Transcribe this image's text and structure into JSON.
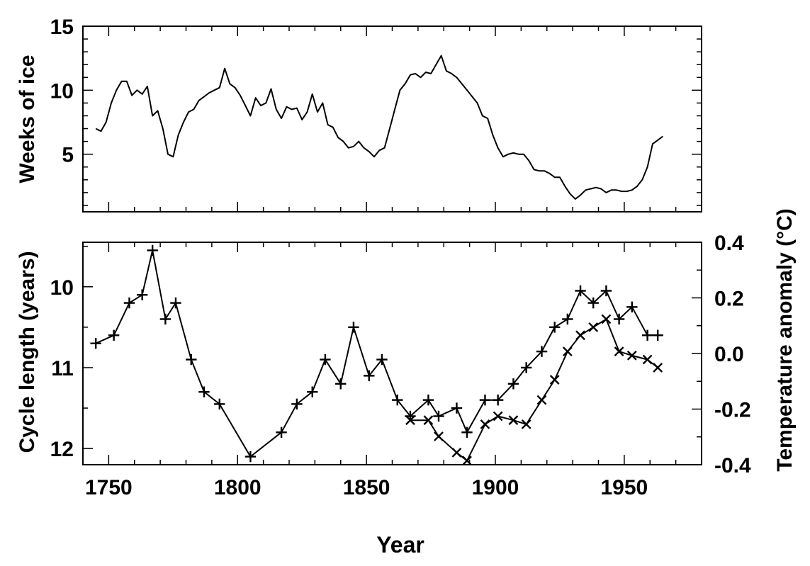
{
  "chart_data": [
    {
      "type": "line",
      "ylabel": "Weeks of ice",
      "xlim": [
        1740,
        1980
      ],
      "ylim": [
        0.5,
        15
      ],
      "yticks": [
        5,
        10,
        15
      ],
      "grid": false,
      "series": [
        {
          "x": [
            1745,
            1747,
            1749,
            1751,
            1753,
            1755,
            1757,
            1759,
            1761,
            1763,
            1765,
            1767,
            1769,
            1771,
            1773,
            1775,
            1777,
            1779,
            1781,
            1783,
            1785,
            1787,
            1789,
            1791,
            1793,
            1795,
            1797,
            1799,
            1801,
            1803,
            1805,
            1807,
            1809,
            1811,
            1813,
            1815,
            1817,
            1819,
            1821,
            1823,
            1825,
            1827,
            1829,
            1831,
            1833,
            1835,
            1837,
            1839,
            1841,
            1843,
            1845,
            1847,
            1849,
            1851,
            1853,
            1855,
            1857,
            1859,
            1861,
            1863,
            1865,
            1867,
            1869,
            1871,
            1873,
            1875,
            1877,
            1879,
            1881,
            1883,
            1885,
            1887,
            1889,
            1891,
            1893,
            1895,
            1897,
            1899,
            1901,
            1903,
            1905,
            1907,
            1909,
            1911,
            1913,
            1915,
            1917,
            1919,
            1921,
            1923,
            1925,
            1927,
            1929,
            1931,
            1933,
            1935,
            1937,
            1939,
            1941,
            1943,
            1945,
            1947,
            1949,
            1951,
            1953,
            1955,
            1957,
            1959,
            1961,
            1963,
            1965
          ],
          "y": [
            7.0,
            6.8,
            7.5,
            9.0,
            10.0,
            10.7,
            10.7,
            9.6,
            10.0,
            9.7,
            10.3,
            8.0,
            8.4,
            7.0,
            5.0,
            4.8,
            6.5,
            7.5,
            8.3,
            8.5,
            9.2,
            9.5,
            9.8,
            10.0,
            10.2,
            11.7,
            10.5,
            10.2,
            9.6,
            8.8,
            8.0,
            9.4,
            8.8,
            9.0,
            10.1,
            8.5,
            7.8,
            8.7,
            8.5,
            8.6,
            7.7,
            8.3,
            9.7,
            8.3,
            9.0,
            7.3,
            7.1,
            6.3,
            6.0,
            5.5,
            5.6,
            6.0,
            5.5,
            5.2,
            4.8,
            5.3,
            5.5,
            7.0,
            8.5,
            10.0,
            10.5,
            11.2,
            11.3,
            11.0,
            11.4,
            11.3,
            12.0,
            12.7,
            11.5,
            11.3,
            11.0,
            10.5,
            10.0,
            9.5,
            9.0,
            8.0,
            7.8,
            6.5,
            5.5,
            4.8,
            5.0,
            5.1,
            5.0,
            5.0,
            4.5,
            3.8,
            3.7,
            3.7,
            3.5,
            3.2,
            3.2,
            2.5,
            1.9,
            1.5,
            1.8,
            2.2,
            2.3,
            2.4,
            2.3,
            2.0,
            2.2,
            2.2,
            2.1,
            2.1,
            2.2,
            2.5,
            3.0,
            4.0,
            5.8,
            6.1,
            6.4
          ]
        }
      ]
    },
    {
      "type": "line",
      "xlabel": "Year",
      "ylabel": "Cycle length (years)",
      "y2label": "Temperature anomaly (°C)",
      "xlim": [
        1740,
        1980
      ],
      "xticks": [
        1750,
        1800,
        1850,
        1900,
        1950
      ],
      "ylim": [
        12.2,
        9.45
      ],
      "yticks": [
        10,
        11,
        12
      ],
      "y2lim": [
        -0.4,
        0.4
      ],
      "y2ticks": [
        -0.4,
        -0.2,
        0.0,
        0.2,
        0.4
      ],
      "grid": false,
      "series": [
        {
          "marker": "plus",
          "axis": "left",
          "x": [
            1745,
            1752,
            1758,
            1763,
            1767,
            1772,
            1776,
            1782,
            1787,
            1793,
            1805,
            1817,
            1823,
            1829,
            1834,
            1840,
            1845,
            1851,
            1856,
            1862,
            1867,
            1874,
            1878,
            1885,
            1889,
            1896,
            1901,
            1907,
            1912,
            1918,
            1923,
            1928,
            1933,
            1938,
            1943,
            1948,
            1953,
            1959,
            1963
          ],
          "y": [
            10.7,
            10.6,
            10.2,
            10.1,
            9.55,
            10.4,
            10.2,
            10.9,
            11.3,
            11.45,
            12.1,
            11.8,
            11.45,
            11.3,
            10.9,
            11.2,
            10.5,
            11.1,
            10.9,
            11.4,
            11.6,
            11.4,
            11.6,
            11.5,
            11.8,
            11.4,
            11.4,
            11.2,
            11.0,
            10.8,
            10.5,
            10.4,
            10.05,
            10.2,
            10.05,
            10.4,
            10.25,
            10.6,
            10.6
          ]
        },
        {
          "marker": "x",
          "axis": "left",
          "x": [
            1867,
            1874,
            1878,
            1885,
            1889,
            1896,
            1901,
            1907,
            1912,
            1918,
            1923,
            1928,
            1933,
            1938,
            1943,
            1948,
            1953,
            1959,
            1963
          ],
          "y": [
            11.65,
            11.65,
            11.85,
            12.05,
            12.15,
            11.7,
            11.6,
            11.65,
            11.7,
            11.4,
            11.15,
            10.8,
            10.6,
            10.5,
            10.4,
            10.8,
            10.85,
            10.9,
            11.0
          ]
        }
      ]
    }
  ]
}
